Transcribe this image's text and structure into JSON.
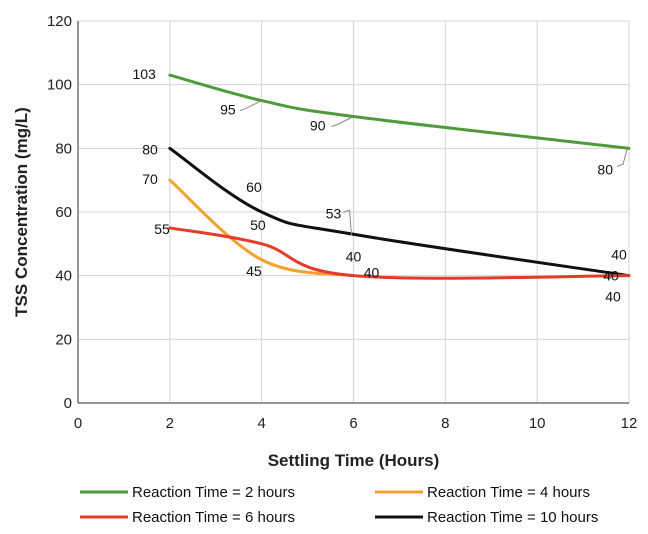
{
  "chart_data": {
    "type": "line",
    "title": "",
    "xlabel": "Settling Time (Hours)",
    "ylabel": "TSS Concentration (mg/L)",
    "xlim": [
      0,
      12
    ],
    "ylim": [
      0,
      120
    ],
    "xticks": [
      "0",
      "2",
      "4",
      "6",
      "8",
      "10",
      "12"
    ],
    "yticks": [
      "0",
      "20",
      "40",
      "60",
      "80",
      "100",
      "120"
    ],
    "grid": true,
    "legend_position": "bottom",
    "series": [
      {
        "name": "Reaction Time = 2 hours",
        "color": "#4f9a3b",
        "x": [
          2,
          4,
          6,
          12
        ],
        "values": [
          103,
          95,
          90,
          80
        ],
        "labels": [
          "103",
          "95",
          "90",
          "80"
        ]
      },
      {
        "name": "Reaction Time = 4 hours",
        "color": "#f5a031",
        "x": [
          2,
          4,
          6
        ],
        "values": [
          70,
          45,
          40
        ],
        "labels": [
          "70",
          "45",
          "40"
        ]
      },
      {
        "name": "Reaction Time = 6 hours",
        "color": "#e53b2a",
        "x": [
          2,
          4,
          6,
          12
        ],
        "values": [
          55,
          50,
          40,
          40
        ],
        "labels": [
          "55",
          "50",
          "40",
          "40"
        ]
      },
      {
        "name": "Reaction Time = 10 hours",
        "color": "#111111",
        "x": [
          2,
          4,
          6,
          12
        ],
        "values": [
          80,
          60,
          53,
          40
        ],
        "labels": [
          "80",
          "60",
          "53",
          "40"
        ]
      }
    ]
  }
}
